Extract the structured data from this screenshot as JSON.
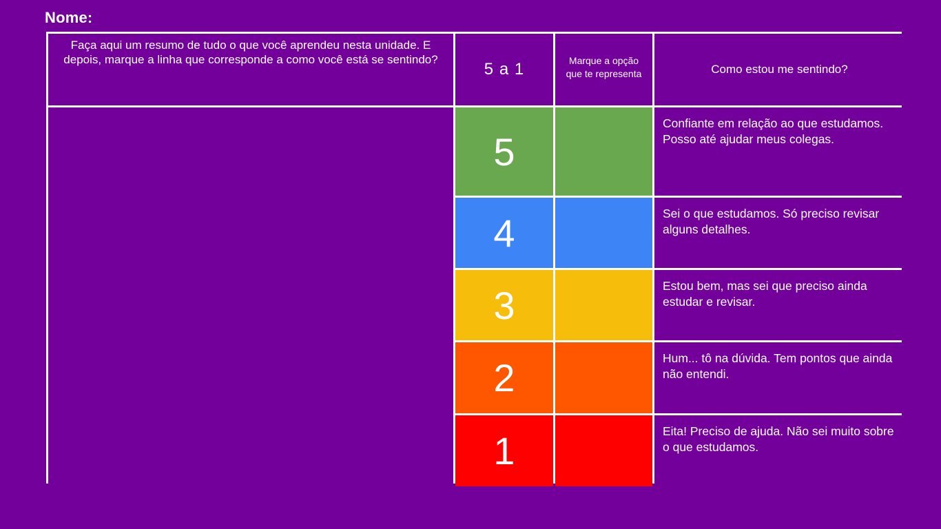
{
  "nome_label": "Nome:",
  "header": {
    "summary_instruction": "Faça aqui um resumo de tudo o que você aprendeu nesta unidade. E depois, marque a linha que corresponde a como você está se sentindo?",
    "scale_label": "5 a 1",
    "mark_label": "Marque a opção que te representa",
    "feeling_label": "Como estou me sentindo?"
  },
  "rows": [
    {
      "number": "5",
      "color": "#6aa84f",
      "description": "Confiante em relação ao que estudamos. Posso até ajudar meus colegas."
    },
    {
      "number": "4",
      "color": "#3d85f6",
      "description": "Sei o que estudamos. Só preciso revisar alguns detalhes."
    },
    {
      "number": "3",
      "color": "#f6be0b",
      "description": "Estou bem, mas sei que preciso ainda estudar e revisar."
    },
    {
      "number": "2",
      "color": "#ff5600",
      "description": "Hum... tô na dúvida. Tem pontos que ainda não entendi."
    },
    {
      "number": "1",
      "color": "#ff0000",
      "description": "Eita! Preciso de ajuda. Não sei muito sobre o que estudamos."
    }
  ],
  "colors": {
    "background": "#74009c",
    "grid_lines": "#ffffff"
  }
}
